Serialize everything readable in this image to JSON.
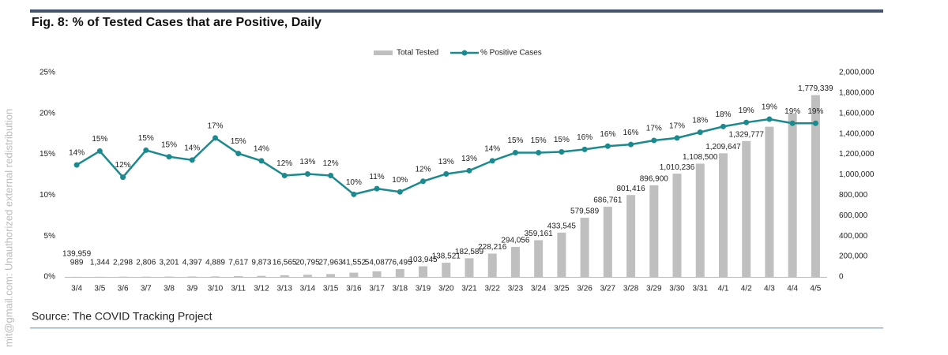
{
  "chart_data": {
    "type": "bar-line",
    "title": "Fig. 8:  % of Tested Cases that are Positive, Daily",
    "source": "Source: The COVID Tracking Project",
    "watermark": "mit@gmail.com: Unauthorized external redistribution",
    "annotations": [
      "139,959"
    ],
    "categories": [
      "3/4",
      "3/5",
      "3/6",
      "3/7",
      "3/8",
      "3/9",
      "3/10",
      "3/11",
      "3/12",
      "3/13",
      "3/14",
      "3/15",
      "3/16",
      "3/17",
      "3/18",
      "3/19",
      "3/20",
      "3/21",
      "3/22",
      "3/23",
      "3/24",
      "3/25",
      "3/26",
      "3/27",
      "3/28",
      "3/29",
      "3/30",
      "3/31",
      "4/1",
      "4/2",
      "4/3",
      "4/4",
      "4/5"
    ],
    "series": [
      {
        "name": "Total Tested",
        "type": "bar",
        "axis": "y2",
        "color": "#bfbfbf",
        "values": [
          989,
          1344,
          2298,
          2806,
          3201,
          4397,
          4889,
          7617,
          9873,
          16565,
          20795,
          27963,
          41552,
          54087,
          76495,
          103945,
          138521,
          182589,
          228216,
          294056,
          359161,
          433545,
          579589,
          686761,
          801416,
          896900,
          1010236,
          1108500,
          1209647,
          1329777,
          1470000,
          1600000,
          1779339
        ],
        "value_labels": [
          "989",
          "1,344",
          "2,298",
          "2,806",
          "3,201",
          "4,397",
          "4,889",
          "7,617",
          "9,873",
          "16,565",
          "20,795",
          "27,963",
          "41,552",
          "54,087",
          "76,495",
          "103,945",
          "138,521",
          "182,589",
          "228,216",
          "294,056",
          "359,161",
          "433,545",
          "579,589",
          "686,761",
          "801,416",
          "896,900",
          "1,010,236",
          "1,108,500",
          "1,209,647",
          "1,329,777",
          null,
          null,
          "1,779,339"
        ]
      },
      {
        "name": "% Positive Cases",
        "type": "line",
        "axis": "y",
        "color": "#1b8a8e",
        "values": [
          13.7,
          15.4,
          12.2,
          15.5,
          14.7,
          14.3,
          17.0,
          15.1,
          14.2,
          12.4,
          12.6,
          12.4,
          10.1,
          10.8,
          10.4,
          11.7,
          12.6,
          13.0,
          14.2,
          15.2,
          15.2,
          15.3,
          15.6,
          16.0,
          16.2,
          16.7,
          17.0,
          17.7,
          18.4,
          18.9,
          19.3,
          18.8,
          18.8
        ],
        "value_labels": [
          "14%",
          "15%",
          "12%",
          "15%",
          "15%",
          "14%",
          "17%",
          "15%",
          "14%",
          "12%",
          "13%",
          "12%",
          "10%",
          "11%",
          "10%",
          "12%",
          "13%",
          "13%",
          "14%",
          "15%",
          "15%",
          "15%",
          "16%",
          "16%",
          "16%",
          "17%",
          "17%",
          "18%",
          "18%",
          "19%",
          "19%",
          "19%",
          "19%"
        ]
      }
    ],
    "ylim": [
      0,
      25
    ],
    "yticks": [
      {
        "value": 0,
        "label": "0%"
      },
      {
        "value": 5,
        "label": "5%"
      },
      {
        "value": 10,
        "label": "10%"
      },
      {
        "value": 15,
        "label": "15%"
      },
      {
        "value": 20,
        "label": "20%"
      },
      {
        "value": 25,
        "label": "25%"
      }
    ],
    "y2lim": [
      0,
      2000000
    ],
    "y2ticks": [
      0,
      {
        "value": 200000,
        "label": "200,000"
      },
      {
        "value": 400000,
        "label": "400,000"
      },
      {
        "value": 600000,
        "label": "600,000"
      },
      {
        "value": 800000,
        "label": "800,000"
      },
      {
        "value": 1000000,
        "label": "1,000,000"
      },
      {
        "value": 1200000,
        "label": "1,200,000"
      },
      {
        "value": 1400000,
        "label": "1,400,000"
      },
      {
        "value": 1600000,
        "label": "1,600,000"
      },
      {
        "value": 1800000,
        "label": "1,800,000"
      },
      {
        "value": 2000000,
        "label": "2,000,000"
      }
    ],
    "legend": "top"
  }
}
